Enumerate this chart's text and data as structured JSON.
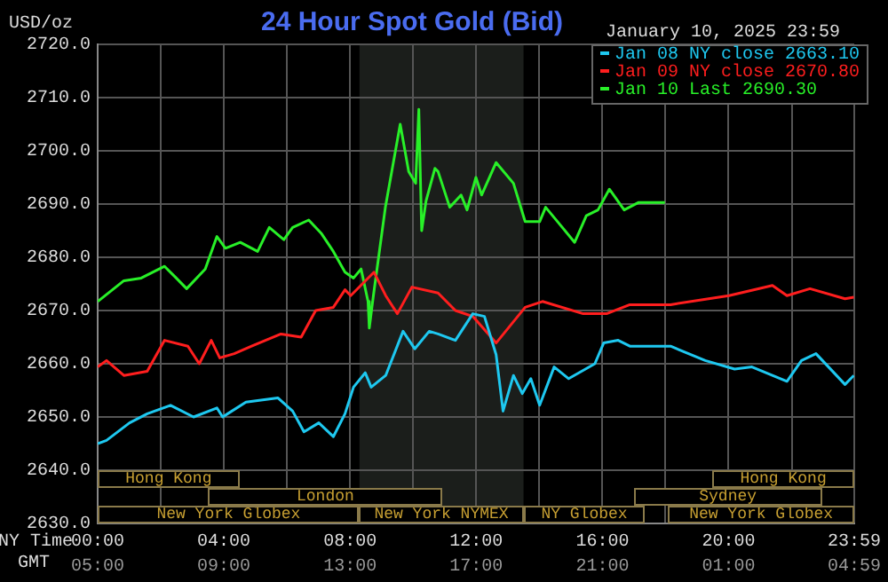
{
  "chart_data": {
    "type": "line",
    "title": "24 Hour Spot Gold (Bid)",
    "ylabel": "USD/oz",
    "xlabel": "NY Time",
    "annotations": [
      "January 10, 2025 23:59",
      "New York Globex",
      "New York NYMEX",
      "NY Globex",
      "New York Globex",
      "London",
      "Sydney",
      "Hong Kong",
      "Hong Kong"
    ],
    "legend": "top right",
    "marker": "none",
    "line_style": "solid",
    "grid": true,
    "xlim": [
      0,
      23.983
    ],
    "ylim": [
      2630,
      2720
    ],
    "xticks": [
      {
        "value": 0,
        "label": "00:00"
      },
      {
        "value": 2,
        "label": null
      },
      {
        "value": 4,
        "label": "04:00"
      },
      {
        "value": 6,
        "label": null
      },
      {
        "value": 8,
        "label": "08:00"
      },
      {
        "value": 10,
        "label": null
      },
      {
        "value": 12,
        "label": "12:00"
      },
      {
        "value": 14,
        "label": null
      },
      {
        "value": 16,
        "label": "16:00"
      },
      {
        "value": 18,
        "label": null
      },
      {
        "value": 20,
        "label": "20:00"
      },
      {
        "value": 22,
        "label": null
      },
      {
        "value": 23.983,
        "label": "23:59"
      }
    ],
    "x2label": "GMT",
    "x2lim": [
      "2025-01-10T05:00",
      "2025-01-11T04:59"
    ],
    "x2ticks": [
      {
        "value": "2025-01-10T05:00",
        "label": "05:00"
      },
      {
        "value": "2025-01-10T09:00",
        "label": "09:00"
      },
      {
        "value": "2025-01-10T13:00",
        "label": "13:00"
      },
      {
        "value": "2025-01-10T17:00",
        "label": "17:00"
      },
      {
        "value": "2025-01-10T21:00",
        "label": "21:00"
      },
      {
        "value": "2025-01-11T01:00",
        "label": "01:00"
      },
      {
        "value": "2025-01-11T04:59",
        "label": "04:59"
      }
    ],
    "yticks": [
      {
        "value": 2630,
        "label": "2630.0"
      },
      {
        "value": 2640,
        "label": "2640.0"
      },
      {
        "value": 2650,
        "label": "2650.0"
      },
      {
        "value": 2660,
        "label": "2660.0"
      },
      {
        "value": 2670,
        "label": "2670.0"
      },
      {
        "value": 2680,
        "label": "2680.0"
      },
      {
        "value": 2690,
        "label": "2690.0"
      },
      {
        "value": 2700,
        "label": "2700.0"
      },
      {
        "value": 2710,
        "label": "2710.0"
      },
      {
        "value": 2720,
        "label": "2720.0"
      }
    ],
    "bands": [
      {
        "axis": "x",
        "from": 8.3,
        "to": 13.5,
        "color": "#1b1e1b"
      }
    ],
    "series": [
      {
        "name": "Jan 08 NY close 2663.10",
        "color": "#1ec8f0",
        "x": [
          0,
          0.28,
          1.01,
          1.57,
          2.31,
          3.04,
          3.78,
          3.96,
          4.7,
          5.71,
          6.18,
          6.54,
          7.01,
          7.47,
          7.84,
          8.11,
          8.48,
          8.67,
          9.13,
          9.68,
          10.05,
          10.51,
          10.79,
          11.34,
          11.89,
          12.26,
          12.63,
          12.85,
          13.18,
          13.46,
          13.73,
          14.01,
          14.47,
          14.93,
          15.76,
          16.04,
          16.5,
          16.87,
          18.16,
          19.26,
          20.19,
          20.74,
          21.85,
          22.31,
          22.77,
          23.69,
          23.97
        ],
        "values": [
          2645,
          2645.6,
          2648.9,
          2650.6,
          2652.2,
          2650,
          2651.7,
          2650,
          2652.8,
          2653.6,
          2651.1,
          2647.2,
          2648.9,
          2646.3,
          2650.6,
          2655.6,
          2658.3,
          2655.6,
          2657.8,
          2666.1,
          2662.8,
          2666.1,
          2665.6,
          2664.4,
          2669.4,
          2668.9,
          2661.7,
          2651.1,
          2657.8,
          2654.4,
          2657.2,
          2652.2,
          2659.4,
          2657.2,
          2660,
          2663.9,
          2664.4,
          2663.3,
          2663.3,
          2660.6,
          2659,
          2659.4,
          2656.7,
          2660.6,
          2661.9,
          2656.1,
          2657.8
        ]
      },
      {
        "name": "Jan 09 NY close 2670.80",
        "color": "#ff1e1e",
        "x": [
          0,
          0.28,
          0.83,
          1.57,
          2.12,
          2.86,
          3.22,
          3.6,
          3.87,
          4.33,
          4.88,
          5.81,
          6.45,
          6.91,
          7.47,
          7.84,
          8.02,
          8.76,
          9.13,
          9.5,
          9.96,
          10.79,
          11.34,
          11.89,
          12.63,
          13.55,
          14.1,
          15.39,
          16.13,
          16.87,
          18.16,
          20.01,
          21.39,
          21.85,
          22.58,
          23.69,
          23.97
        ],
        "values": [
          2659.4,
          2660.6,
          2657.8,
          2658.6,
          2664.4,
          2663.3,
          2660,
          2664.4,
          2661.1,
          2661.9,
          2663.3,
          2665.6,
          2665,
          2670,
          2670.6,
          2673.9,
          2672.8,
          2677.2,
          2672.8,
          2669.4,
          2674.4,
          2673.3,
          2670,
          2668.9,
          2663.9,
          2670.6,
          2671.7,
          2669.4,
          2669.4,
          2671.1,
          2671.1,
          2672.8,
          2674.7,
          2672.8,
          2674.1,
          2672.2,
          2672.5
        ]
      },
      {
        "name": "Jan 10 Last 2690.30",
        "color": "#28f028",
        "x": [
          0,
          0.83,
          1.38,
          2.12,
          2.49,
          2.82,
          3.41,
          3.78,
          4.05,
          4.52,
          5.07,
          5.44,
          5.9,
          6.18,
          6.69,
          7.1,
          7.47,
          7.84,
          8.11,
          8.35,
          8.57,
          8.61,
          8.74,
          9.12,
          9.59,
          9.86,
          10.08,
          10.18,
          10.27,
          10.41,
          10.69,
          10.79,
          11.16,
          11.52,
          11.71,
          11.99,
          12.17,
          12.63,
          13.18,
          13.55,
          14.01,
          14.2,
          14.66,
          15.12,
          15.49,
          15.86,
          16.22,
          16.69,
          17.15,
          17.98
        ],
        "values": [
          2671.7,
          2675.6,
          2676.1,
          2678.3,
          2676.1,
          2674.1,
          2677.8,
          2683.9,
          2681.7,
          2682.8,
          2681.1,
          2685.6,
          2683.3,
          2685.6,
          2687,
          2684.4,
          2681.1,
          2677.2,
          2676.1,
          2677.8,
          2671.7,
          2666.7,
          2672.8,
          2689.4,
          2705,
          2696.1,
          2693.9,
          2707.8,
          2685,
          2690.6,
          2696.7,
          2696.1,
          2689.4,
          2691.7,
          2688.9,
          2695,
          2691.7,
          2697.8,
          2693.9,
          2686.7,
          2686.7,
          2689.4,
          2686.1,
          2682.8,
          2687.8,
          2688.9,
          2692.8,
          2688.9,
          2690.3,
          2690.3
        ]
      }
    ]
  }
}
